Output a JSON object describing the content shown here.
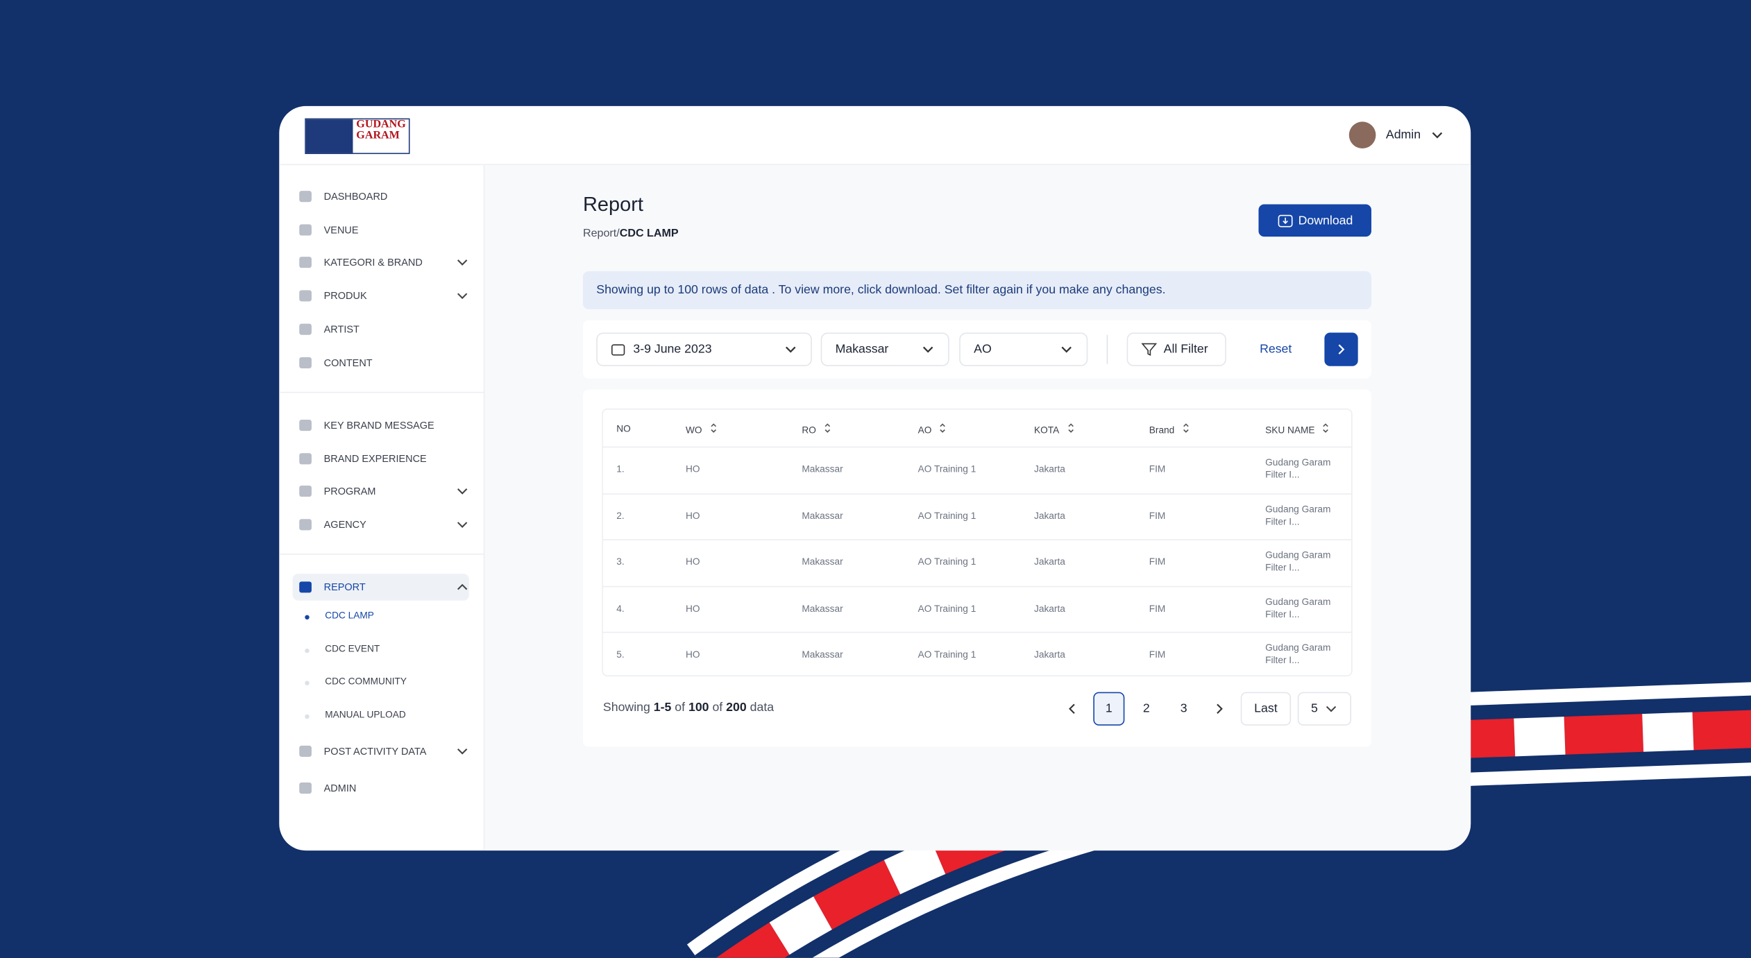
{
  "header": {
    "logo": {
      "line1": "GUDANG",
      "line2": "GARAM"
    },
    "user": "Admin"
  },
  "sidebar": {
    "groups": [
      [
        {
          "label": "DASHBOARD",
          "submenu": false
        },
        {
          "label": "VENUE",
          "submenu": false
        },
        {
          "label": "KATEGORI & BRAND",
          "submenu": true
        },
        {
          "label": "PRODUK",
          "submenu": true
        },
        {
          "label": "ARTIST",
          "submenu": false
        },
        {
          "label": "CONTENT",
          "submenu": false
        }
      ],
      [
        {
          "label": "KEY BRAND MESSAGE",
          "submenu": false
        },
        {
          "label": "BRAND EXPERIENCE",
          "submenu": false
        },
        {
          "label": "PROGRAM",
          "submenu": true
        },
        {
          "label": "AGENCY",
          "submenu": true
        }
      ]
    ],
    "report": {
      "label": "REPORT",
      "children": [
        "CDC LAMP",
        "CDC EVENT",
        "CDC COMMUNITY",
        "MANUAL UPLOAD"
      ]
    },
    "tail": [
      {
        "label": "POST ACTIVITY DATA",
        "submenu": true
      },
      {
        "label": "ADMIN",
        "submenu": false
      }
    ]
  },
  "page": {
    "title": "Report",
    "breadcrumb": {
      "parent": "Report/",
      "current": "CDC LAMP"
    },
    "download": "Download",
    "info": "Showing up to 100 rows of data . To view more, click download. Set filter again if you make any changes.",
    "filters": {
      "date": "3-9 June 2023",
      "city": "Makassar",
      "role": "AO",
      "all": "All Filter",
      "reset": "Reset"
    }
  },
  "table": {
    "columns": [
      "NO",
      "WO",
      "RO",
      "AO",
      "KOTA",
      "Brand",
      "SKU NAME"
    ],
    "rows": [
      [
        "1.",
        "HO",
        "Makassar",
        "AO Training 1",
        "Jakarta",
        "FIM",
        "Gudang Garam Filter I..."
      ],
      [
        "2.",
        "HO",
        "Makassar",
        "AO Training 1",
        "Jakarta",
        "FIM",
        "Gudang Garam Filter I..."
      ],
      [
        "3.",
        "HO",
        "Makassar",
        "AO Training 1",
        "Jakarta",
        "FIM",
        "Gudang Garam Filter I..."
      ],
      [
        "4.",
        "HO",
        "Makassar",
        "AO Training 1",
        "Jakarta",
        "FIM",
        "Gudang Garam Filter I..."
      ],
      [
        "5.",
        "HO",
        "Makassar",
        "AO Training 1",
        "Jakarta",
        "FIM",
        "Gudang Garam Filter I..."
      ]
    ]
  },
  "pagination": {
    "summary": [
      "Showing",
      "1-5",
      "of",
      "100",
      "of",
      "200",
      "data"
    ],
    "pages": [
      "1",
      "2",
      "3"
    ],
    "last": "Last",
    "page_size": "5"
  }
}
